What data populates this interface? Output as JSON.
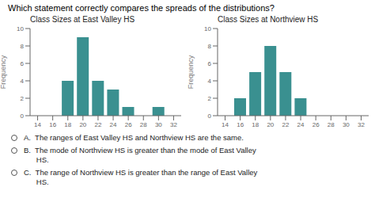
{
  "title": "Which statement correctly compares the spreads of the distributions?",
  "annotations": [
    "A.  The ranges of East Valley HS and Northview HS are the same.",
    "B.  The mode of Northview HS is greater than the mode of East Valley",
    "      HS.",
    "C.  The range of Northview HS is greater than the range of East Valley",
    "      HS."
  ],
  "chart_data": [
    {
      "type": "bar",
      "title": "Class Sizes at East Valley HS",
      "categories": [
        "14",
        "16",
        "18",
        "20",
        "22",
        "24",
        "26",
        "28",
        "30",
        "32"
      ],
      "values": [
        0,
        0,
        4,
        9,
        4,
        3,
        1,
        0,
        1,
        0
      ],
      "color": "#3a9090",
      "ylabel": "Frequency",
      "ylim": [
        0,
        10
      ],
      "yticks": [
        0,
        2,
        4,
        6,
        8,
        10
      ],
      "grid": false
    },
    {
      "type": "bar",
      "title": "Class Sizes at Northview HS",
      "categories": [
        "14",
        "16",
        "18",
        "20",
        "22",
        "24",
        "26",
        "28",
        "30",
        "32"
      ],
      "values": [
        0,
        2,
        5,
        8,
        5,
        2,
        0,
        0,
        0,
        0
      ],
      "color": "#3a9090",
      "ylabel": "Frequency",
      "ylim": [
        0,
        10
      ],
      "yticks": [
        0,
        2,
        4,
        6,
        8,
        10
      ],
      "grid": false
    }
  ]
}
